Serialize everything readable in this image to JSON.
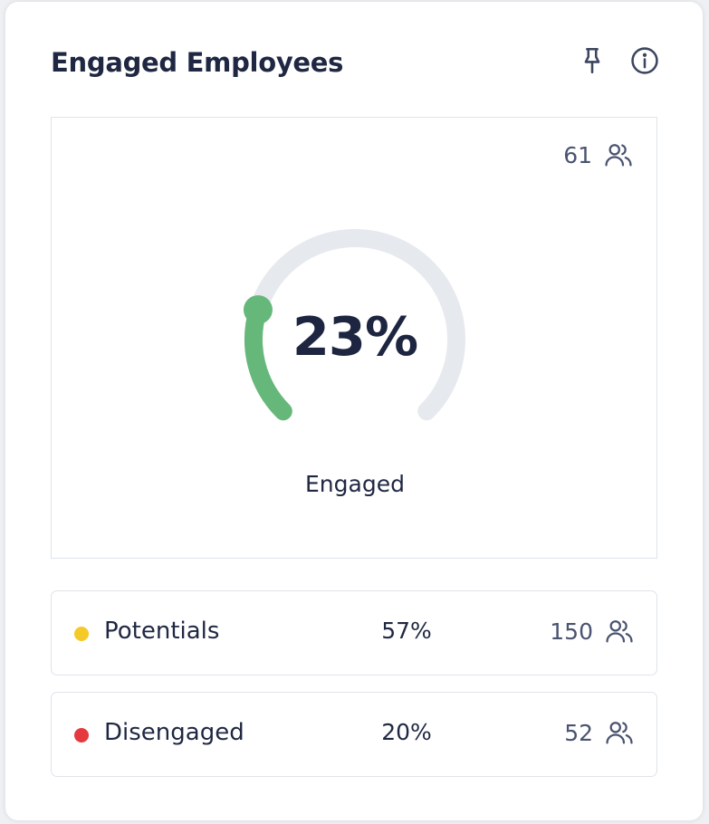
{
  "card": {
    "title": "Engaged Employees",
    "icons": {
      "pin": "pin-icon",
      "info": "info-icon"
    }
  },
  "gauge": {
    "count": "61",
    "count_icon": "people-icon",
    "percent_text": "23%",
    "value_fraction": 0.23,
    "label": "Engaged",
    "colors": {
      "progress": "#66b87a",
      "track": "#e6e9ee"
    }
  },
  "rows": [
    {
      "label": "Potentials",
      "percent": "57%",
      "count": "150",
      "dot_color": "#f5c928",
      "icon": "people-icon"
    },
    {
      "label": "Disengaged",
      "percent": "20%",
      "count": "52",
      "dot_color": "#e43a3f",
      "icon": "people-icon"
    }
  ]
}
